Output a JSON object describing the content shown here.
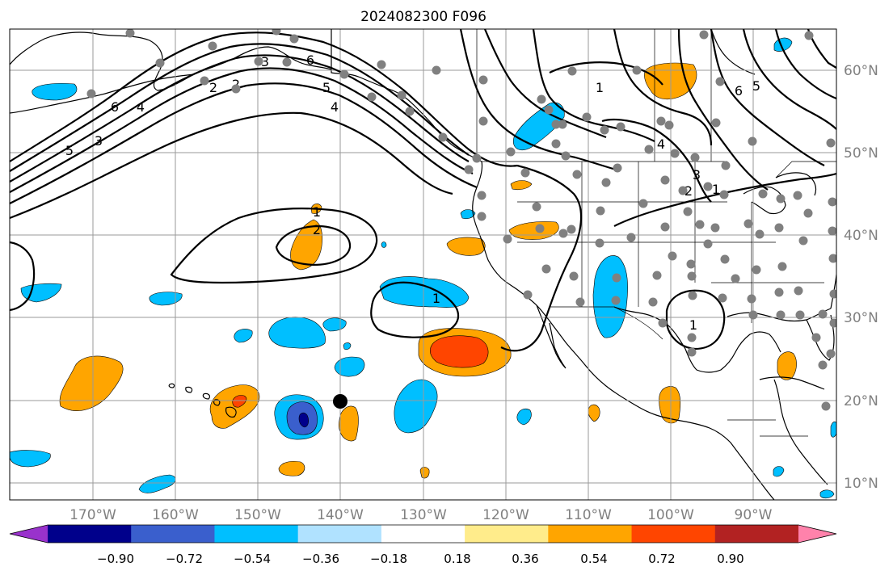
{
  "title": "2024082300 F096",
  "lon_labels": [
    "170°W",
    "160°W",
    "150°W",
    "140°W",
    "130°W",
    "120°W",
    "110°W",
    "100°W",
    "90°W"
  ],
  "lat_labels": [
    "60°N",
    "50°N",
    "40°N",
    "30°N",
    "20°N",
    "10°N"
  ],
  "colorbar": {
    "ticks": [
      "−0.90",
      "−0.72",
      "−0.54",
      "−0.36",
      "−0.18",
      "0.18",
      "0.36",
      "0.54",
      "0.72",
      "0.90"
    ],
    "colors": [
      "#9932cc",
      "#00008b",
      "#3a5fcd",
      "#00bfff",
      "#b0e2ff",
      "#ffffff",
      "#ffec8b",
      "#ffa500",
      "#ff4500",
      "#b22222",
      "#ff82ab"
    ]
  },
  "contour_labels": [
    "6",
    "5",
    "4",
    "3",
    "2",
    "6",
    "5",
    "4",
    "3",
    "2",
    "1",
    "2",
    "1",
    "1",
    "1",
    "6",
    "5",
    "4",
    "3",
    "2",
    "1"
  ],
  "map": {
    "extent_lon": [
      -180,
      -80
    ],
    "extent_lat": [
      8,
      65
    ],
    "station_color": "#808080",
    "marker_color": "#000000"
  }
}
